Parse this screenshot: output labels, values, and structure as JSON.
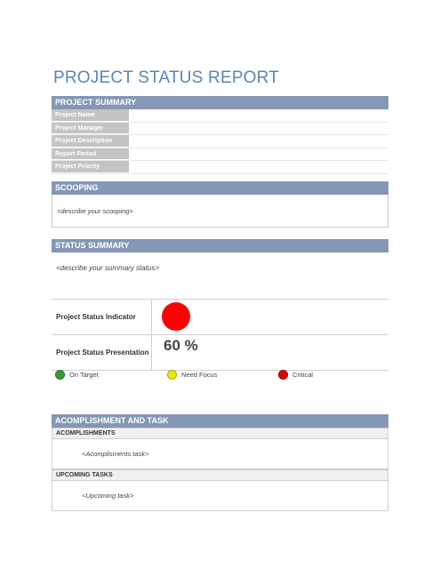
{
  "title": "PROJECT STATUS REPORT",
  "project_summary": {
    "header": "PROJECT SUMMARY",
    "rows": [
      {
        "label": "Project Name",
        "value": ""
      },
      {
        "label": "Project Manager",
        "value": ""
      },
      {
        "label": "Project Description",
        "value": ""
      },
      {
        "label": "Report Period",
        "value": ""
      },
      {
        "label": "Project Priority",
        "value": ""
      }
    ]
  },
  "scooping": {
    "header": "SCOOPING",
    "placeholder": "<describe your scooping>"
  },
  "status_summary": {
    "header": "STATUS SUMMARY",
    "placeholder": "<describe your summary status>",
    "indicator_label": "Project Status Indicator",
    "indicator_color": "#ff0000",
    "presentation_label": "Project Status Presentation",
    "presentation_value": "60 %"
  },
  "legend": [
    {
      "label": "On Target",
      "color": "#3a9a3a"
    },
    {
      "label": "Need Focus",
      "color": "#e8e800"
    },
    {
      "label": "Critical",
      "color": "#dd0000"
    }
  ],
  "accomplishment": {
    "header": "ACOMPLISHMENT AND TASK",
    "accomplishments_header": "ACOMPLISHMENTS",
    "accomplishments_placeholder": "<Acomplisments task>",
    "upcoming_header": "UPCOMING TASKS",
    "upcoming_placeholder": "<Upcoming task>"
  }
}
